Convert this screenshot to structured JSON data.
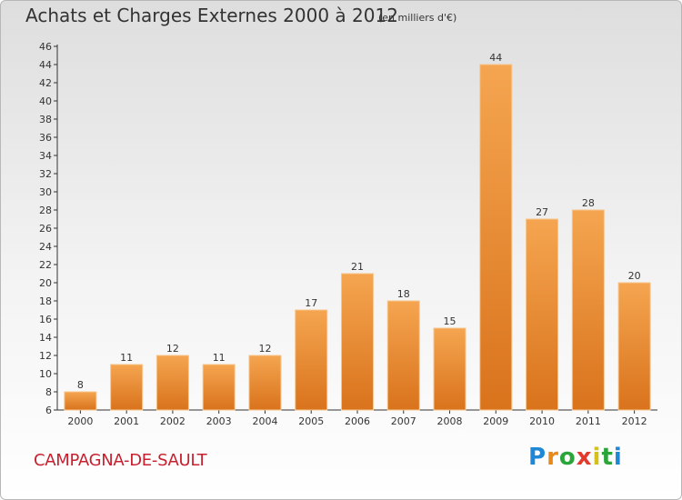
{
  "header": {
    "title": "Achats et Charges Externes 2000 à 2012",
    "unit": "(en milliers d'€)"
  },
  "footer": {
    "commune": "CAMPAGNA-DE-SAULT",
    "brand": [
      "P",
      "r",
      "o",
      "x",
      "i",
      "t",
      "i"
    ]
  },
  "colors": {
    "bar_top": "#f5a550",
    "bar_bottom": "#d9731c",
    "commune_text": "#c8202f"
  },
  "chart_data": {
    "type": "bar",
    "categories": [
      "2000",
      "2001",
      "2002",
      "2003",
      "2004",
      "2005",
      "2006",
      "2007",
      "2008",
      "2009",
      "2010",
      "2011",
      "2012"
    ],
    "values": [
      8,
      11,
      12,
      11,
      12,
      17,
      21,
      18,
      15,
      44,
      27,
      28,
      20
    ],
    "ylim": [
      6,
      46
    ],
    "yticks": [
      6,
      8,
      10,
      12,
      14,
      16,
      18,
      20,
      22,
      24,
      26,
      28,
      30,
      32,
      34,
      36,
      38,
      40,
      42,
      44,
      46
    ],
    "grid": false,
    "data_labels": true
  }
}
